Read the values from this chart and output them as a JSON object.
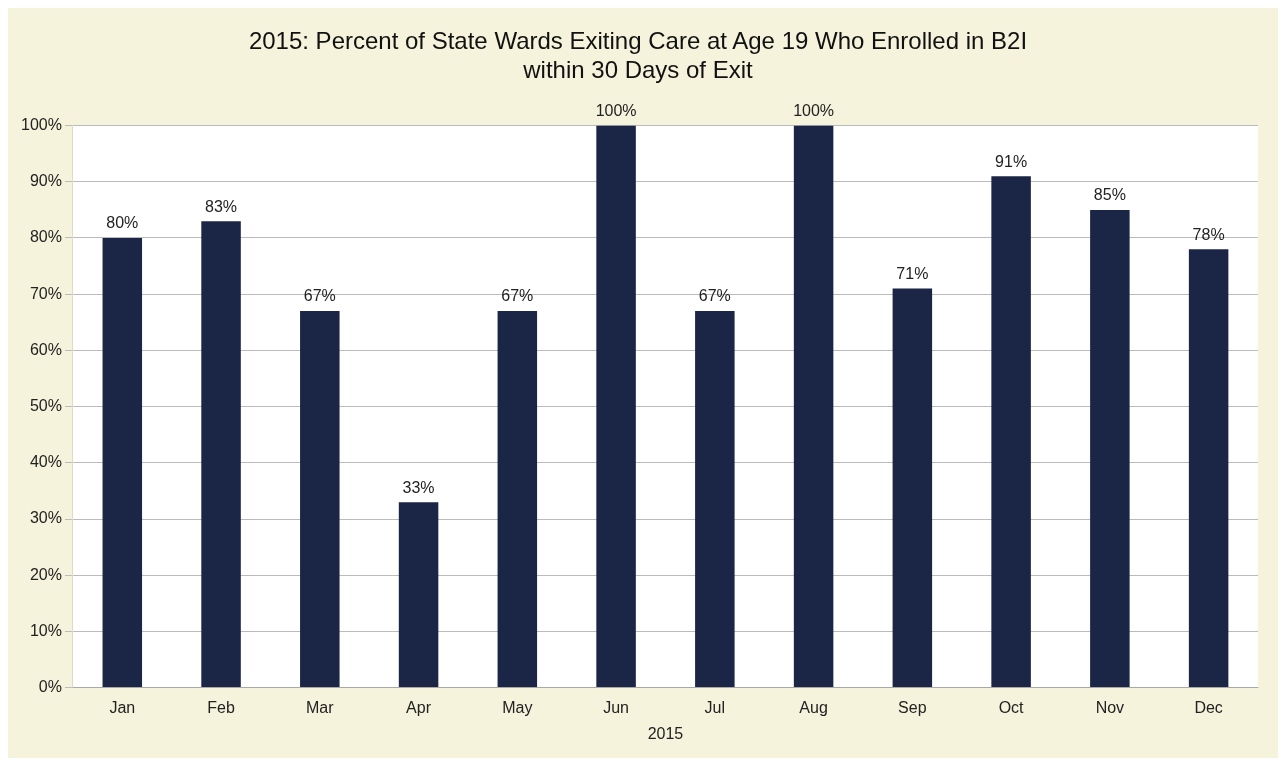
{
  "chart_data": {
    "type": "bar",
    "title": "2015: Percent of State Wards Exiting Care at Age 19 Who Enrolled in B2I\nwithin 30 Days of Exit",
    "xlabel": "2015",
    "categories": [
      "Jan",
      "Feb",
      "Mar",
      "Apr",
      "May",
      "Jun",
      "Jul",
      "Aug",
      "Sep",
      "Oct",
      "Nov",
      "Dec"
    ],
    "values": [
      80,
      83,
      67,
      33,
      67,
      100,
      67,
      100,
      71,
      91,
      85,
      78
    ],
    "value_labels": [
      "80%",
      "83%",
      "67%",
      "33%",
      "67%",
      "100%",
      "67%",
      "100%",
      "71%",
      "91%",
      "85%",
      "78%"
    ],
    "color": "#1b2545",
    "ylim": [
      0,
      100
    ],
    "yticks": [
      {
        "value": 0,
        "label": "0%"
      },
      {
        "value": 10,
        "label": "10%"
      },
      {
        "value": 20,
        "label": "20%"
      },
      {
        "value": 30,
        "label": "30%"
      },
      {
        "value": 40,
        "label": "40%"
      },
      {
        "value": 50,
        "label": "50%"
      },
      {
        "value": 60,
        "label": "60%"
      },
      {
        "value": 70,
        "label": "70%"
      },
      {
        "value": 80,
        "label": "80%"
      },
      {
        "value": 90,
        "label": "90%"
      },
      {
        "value": 100,
        "label": "100%"
      }
    ],
    "grid": "y"
  }
}
